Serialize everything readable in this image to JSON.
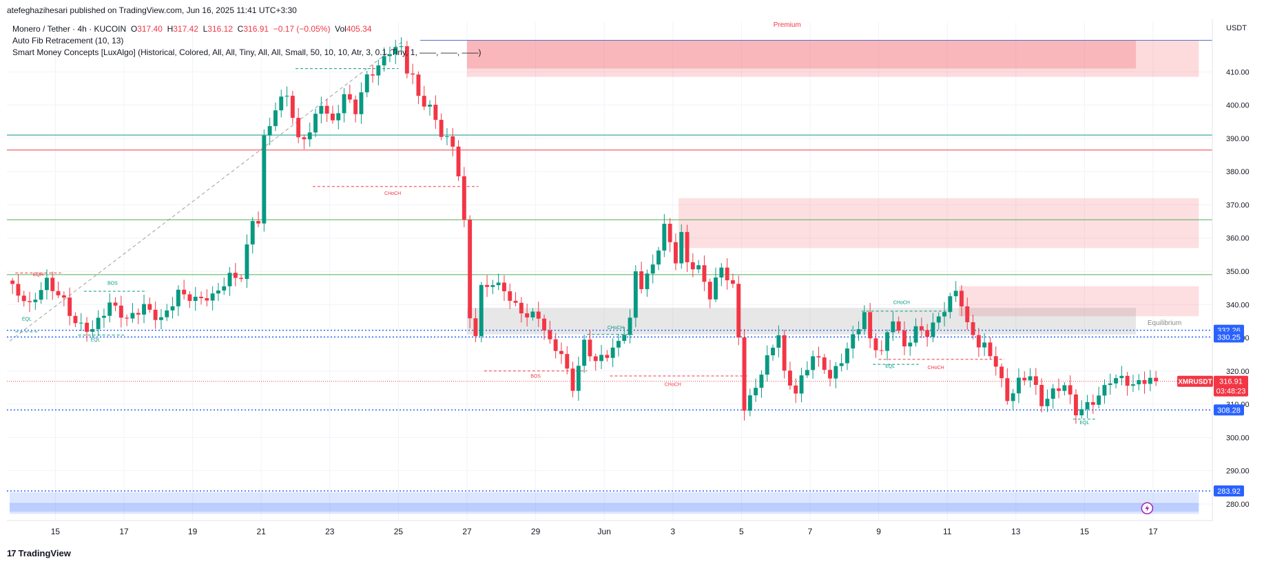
{
  "header": {
    "caption": "atefeghazihesari published on TradingView.com, Jun 16, 2025 11:41 UTC+3:30"
  },
  "legend": {
    "symbol_line": "Monero / Tether · 4h · KUCOIN",
    "o_label": "O",
    "o_value": "317.40",
    "h_label": "H",
    "h_value": "317.42",
    "l_label": "L",
    "l_value": "316.12",
    "c_label": "C",
    "c_value": "316.91",
    "change": "−0.17 (−0.05%)",
    "vol_label": "Vol",
    "vol_value": "405.34",
    "indicator1": "Auto Fib Retracement (10, 13)",
    "indicator2": "Smart Money Concepts [LuxAlgo] (Historical, Colored, All, All, Tiny, All, All, Small, 50, 10, 10, Atr, 3, 0.1, Tiny, 1, ——, ——, ——)"
  },
  "price_axis": {
    "currency": "USDT"
  },
  "footer": {
    "logo_text": "TradingView",
    "logo_mark": "17"
  },
  "chart_data": {
    "type": "candlestick",
    "symbol": "XMRUSDT",
    "timeframe": "4h",
    "ylim": [
      275,
      425
    ],
    "ticks": [
      280,
      290,
      300,
      310,
      320,
      330,
      340,
      350,
      360,
      370,
      380,
      390,
      400,
      410
    ],
    "tick_labels": [
      "280.00",
      "290.00",
      "300.00",
      "310.00",
      "320.00",
      "330.00",
      "340.00",
      "350.00",
      "360.00",
      "370.00",
      "380.00",
      "390.00",
      "400.00",
      "410.00"
    ],
    "x_labels": [
      {
        "label": "15",
        "bar": 8
      },
      {
        "label": "17",
        "bar": 20
      },
      {
        "label": "19",
        "bar": 32
      },
      {
        "label": "21",
        "bar": 44
      },
      {
        "label": "23",
        "bar": 56
      },
      {
        "label": "25",
        "bar": 68
      },
      {
        "label": "27",
        "bar": 80
      },
      {
        "label": "29",
        "bar": 92
      },
      {
        "label": "Jun",
        "bar": 104
      },
      {
        "label": "3",
        "bar": 116
      },
      {
        "label": "5",
        "bar": 128
      },
      {
        "label": "7",
        "bar": 140
      },
      {
        "label": "9",
        "bar": 152
      },
      {
        "label": "11",
        "bar": 164
      },
      {
        "label": "13",
        "bar": 176
      },
      {
        "label": "15",
        "bar": 188
      },
      {
        "label": "17",
        "bar": 200
      }
    ],
    "anchors": [
      [
        0,
        345
      ],
      [
        3,
        338
      ],
      [
        6,
        346
      ],
      [
        9,
        342
      ],
      [
        11,
        336
      ],
      [
        14,
        333
      ],
      [
        17,
        339
      ],
      [
        20,
        334
      ],
      [
        23,
        340
      ],
      [
        26,
        337
      ],
      [
        29,
        344
      ],
      [
        32,
        340
      ],
      [
        35,
        341
      ],
      [
        38,
        349
      ],
      [
        40,
        350
      ],
      [
        42,
        367
      ],
      [
        43,
        366
      ],
      [
        44,
        390
      ],
      [
        46,
        398
      ],
      [
        48,
        402
      ],
      [
        50,
        388
      ],
      [
        52,
        392
      ],
      [
        54,
        402
      ],
      [
        56,
        396
      ],
      [
        58,
        404
      ],
      [
        60,
        398
      ],
      [
        62,
        407
      ],
      [
        64,
        410
      ],
      [
        66,
        416
      ],
      [
        68,
        418
      ],
      [
        69,
        412
      ],
      [
        70,
        410
      ],
      [
        71,
        404
      ],
      [
        73,
        400
      ],
      [
        75,
        391
      ],
      [
        77,
        386
      ],
      [
        78,
        378
      ],
      [
        79,
        363
      ],
      [
        80,
        335
      ],
      [
        81,
        331
      ],
      [
        82,
        345
      ],
      [
        84,
        348
      ],
      [
        86,
        346
      ],
      [
        88,
        340
      ],
      [
        90,
        336
      ],
      [
        92,
        335
      ],
      [
        94,
        327
      ],
      [
        96,
        325
      ],
      [
        97,
        320
      ],
      [
        98,
        316
      ],
      [
        100,
        330
      ],
      [
        102,
        324
      ],
      [
        104,
        325
      ],
      [
        106,
        327
      ],
      [
        108,
        334
      ],
      [
        109,
        348
      ],
      [
        110,
        345
      ],
      [
        112,
        352
      ],
      [
        114,
        365
      ],
      [
        115,
        360
      ],
      [
        116,
        355
      ],
      [
        117,
        362
      ],
      [
        118,
        353
      ],
      [
        120,
        350
      ],
      [
        122,
        341
      ],
      [
        124,
        350
      ],
      [
        126,
        345
      ],
      [
        127,
        331
      ],
      [
        128,
        310
      ],
      [
        129,
        313
      ],
      [
        131,
        321
      ],
      [
        133,
        328
      ],
      [
        134,
        331
      ],
      [
        135,
        318
      ],
      [
        137,
        312
      ],
      [
        139,
        320
      ],
      [
        140,
        324
      ],
      [
        142,
        322
      ],
      [
        143,
        319
      ],
      [
        145,
        325
      ],
      [
        147,
        331
      ],
      [
        149,
        337
      ],
      [
        150,
        328
      ],
      [
        152,
        324
      ],
      [
        154,
        335
      ],
      [
        156,
        327
      ],
      [
        158,
        334
      ],
      [
        160,
        333
      ],
      [
        162,
        337
      ],
      [
        164,
        341
      ],
      [
        165,
        343
      ],
      [
        166,
        339
      ],
      [
        167,
        332
      ],
      [
        169,
        327
      ],
      [
        170,
        327
      ],
      [
        172,
        323
      ],
      [
        174,
        313
      ],
      [
        176,
        318
      ],
      [
        178,
        319
      ],
      [
        180,
        309
      ],
      [
        182,
        312
      ],
      [
        184,
        315
      ],
      [
        186,
        308
      ],
      [
        188,
        311
      ],
      [
        190,
        314
      ],
      [
        192,
        318
      ],
      [
        194,
        317
      ],
      [
        196,
        314
      ],
      [
        198,
        316
      ],
      [
        200,
        317
      ]
    ],
    "bar_count": 201,
    "last_price": 316.91,
    "fib_lines": [
      {
        "price": 386.5,
        "color": "#f23645"
      },
      {
        "price": 391.0,
        "color": "#089981"
      },
      {
        "price": 365.5,
        "color": "#4caf50"
      },
      {
        "price": 349.0,
        "color": "#4caf50"
      }
    ],
    "boxes": [
      {
        "bar_from": 80,
        "bar_to": 208,
        "top": 419.5,
        "bottom": 408.5,
        "fill": "rgba(242,54,69,0.18)"
      },
      {
        "bar_from": 80,
        "bar_to": 197,
        "top": 419.5,
        "bottom": 411,
        "fill": "rgba(242,54,69,0.22)"
      },
      {
        "bar_from": 117,
        "bar_to": 208,
        "top": 372,
        "bottom": 357,
        "fill": "rgba(242,54,69,0.16)"
      },
      {
        "bar_from": 166,
        "bar_to": 208,
        "top": 345.5,
        "bottom": 336.5,
        "fill": "rgba(242,54,69,0.16)"
      },
      {
        "bar_from": 80,
        "bar_to": 197,
        "top": 339,
        "bottom": 331,
        "fill": "rgba(120,120,120,0.18)"
      },
      {
        "bar_from": 0,
        "bar_to": 208,
        "top": 283.5,
        "bottom": 277,
        "fill": "rgba(41,98,255,0.16)"
      },
      {
        "bar_from": 0,
        "bar_to": 208,
        "top": 280.3,
        "bottom": 277.7,
        "fill": "rgba(41,98,255,0.18)"
      }
    ],
    "h_levels": [
      {
        "price": 332.26,
        "color": "#2962ff",
        "label": "332.26",
        "style": "dotted"
      },
      {
        "price": 330.25,
        "color": "#2962ff",
        "label": "330.25",
        "style": "dotted"
      },
      {
        "price": 308.28,
        "color": "#2962ff",
        "label": "308.28",
        "style": "dotted"
      },
      {
        "price": 283.92,
        "color": "#2962ff",
        "label": "283.92",
        "style": "dotted"
      }
    ],
    "price_badge": {
      "symbol": "XMRUSDT",
      "price": "316.91",
      "countdown": "03:48:23"
    },
    "zone_labels": [
      {
        "text": "Premium",
        "bar": 136,
        "price": 423.5,
        "color": "#f23645"
      },
      {
        "text": "Equilibrium",
        "bar": 202,
        "price": 333.8,
        "color": "#8a8a8a"
      }
    ],
    "structure_labels": [
      {
        "text": "EQH",
        "bar": 5,
        "price": 348.5,
        "color": "#f23645"
      },
      {
        "text": "EQL",
        "bar": 3,
        "price": 335.2,
        "color": "#089981"
      },
      {
        "text": "BOS",
        "bar": 18,
        "price": 346.0,
        "color": "#089981"
      },
      {
        "text": "EQL",
        "bar": 15,
        "price": 329.0,
        "color": "#089981"
      },
      {
        "text": "CHoCH",
        "bar": 67,
        "price": 373.0,
        "color": "#f23645"
      },
      {
        "text": "CHoCH",
        "bar": 106,
        "price": 332.6,
        "color": "#089981"
      },
      {
        "text": "BOS",
        "bar": 92,
        "price": 318.0,
        "color": "#f23645"
      },
      {
        "text": "CHoCH",
        "bar": 116,
        "price": 315.5,
        "color": "#f23645"
      },
      {
        "text": "CHoCH",
        "bar": 156,
        "price": 340.2,
        "color": "#089981"
      },
      {
        "text": "EQL",
        "bar": 154,
        "price": 321.0,
        "color": "#089981"
      },
      {
        "text": "CHoCH",
        "bar": 162,
        "price": 320.6,
        "color": "#f23645"
      },
      {
        "text": "EQL",
        "bar": 188,
        "price": 304.0,
        "color": "#089981"
      }
    ],
    "structure_lines": [
      {
        "bar_from": 1,
        "bar_to": 9,
        "price": 349.5,
        "color": "#f23645"
      },
      {
        "bar_from": 13,
        "bar_to": 24,
        "price": 344.0,
        "color": "#089981"
      },
      {
        "bar_from": 1,
        "bar_to": 5,
        "price": 331.8,
        "color": "#089981"
      },
      {
        "bar_from": 12,
        "bar_to": 20,
        "price": 330.8,
        "color": "#089981"
      },
      {
        "bar_from": 53,
        "bar_to": 82,
        "price": 375.5,
        "color": "#f23645"
      },
      {
        "bar_from": 50,
        "bar_to": 68,
        "price": 411.0,
        "color": "#089981"
      },
      {
        "bar_from": 83,
        "bar_to": 101,
        "price": 320.0,
        "color": "#f23645"
      },
      {
        "bar_from": 101,
        "bar_to": 109,
        "price": 331.0,
        "color": "#089981"
      },
      {
        "bar_from": 105,
        "bar_to": 129,
        "price": 318.5,
        "color": "#f23645"
      },
      {
        "bar_from": 149,
        "bar_to": 164,
        "price": 338.0,
        "color": "#089981"
      },
      {
        "bar_from": 152,
        "bar_to": 174,
        "price": 323.5,
        "color": "#f23645"
      },
      {
        "bar_from": 151,
        "bar_to": 159,
        "price": 322.0,
        "color": "#089981"
      },
      {
        "bar_from": 186,
        "bar_to": 190,
        "price": 305.5,
        "color": "#089981"
      }
    ],
    "fib_trend": {
      "bar_from": 0,
      "price_from": 329,
      "bar_to": 69,
      "price_to": 419.5
    }
  }
}
